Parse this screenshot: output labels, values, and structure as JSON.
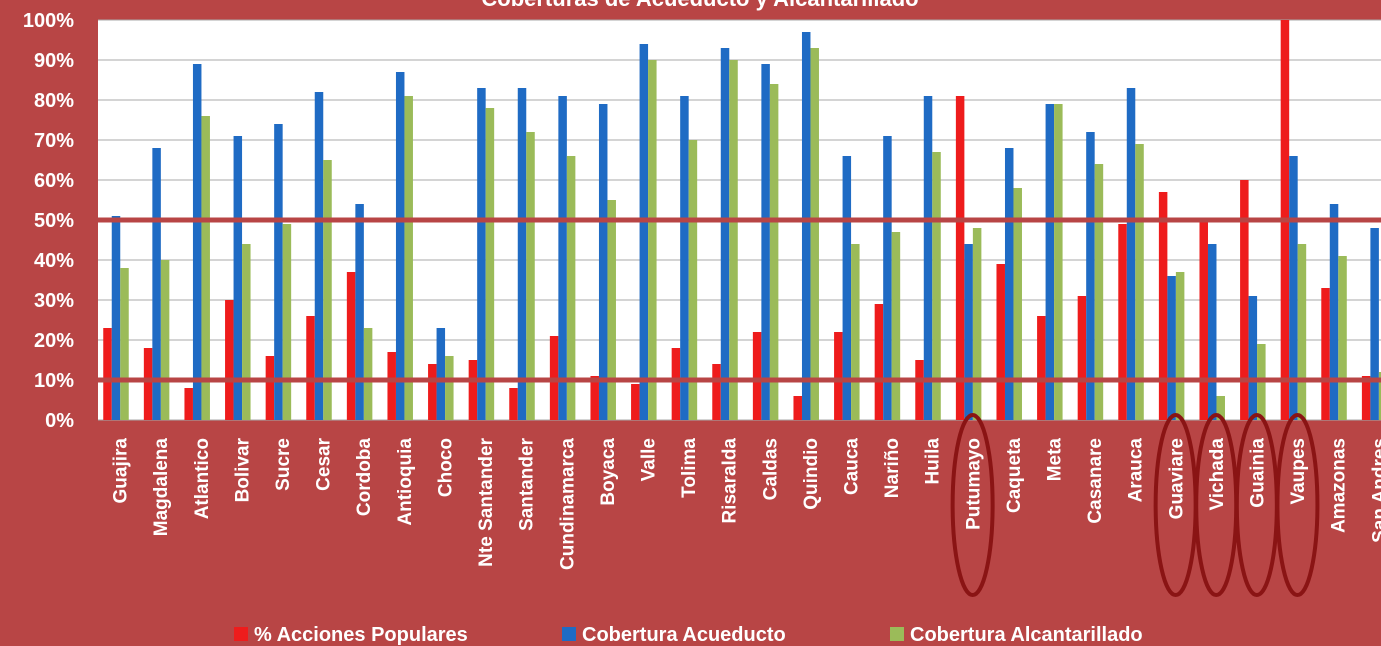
{
  "chart_data": {
    "type": "bar",
    "title": "Coberturas de Acueducto y  Alcantarillado",
    "xlabel": "",
    "ylabel": "",
    "ylim": [
      0,
      100
    ],
    "y_ticks": [
      "0%",
      "10%",
      "20%",
      "30%",
      "40%",
      "50%",
      "60%",
      "70%",
      "80%",
      "90%",
      "100%"
    ],
    "grid": true,
    "legend_position": "bottom",
    "categories": [
      "Guajira",
      "Magdalena",
      "Atlantico",
      "Bolivar",
      "Sucre",
      "Cesar",
      "Cordoba",
      "Antioquia",
      "Choco",
      "Nte Santander",
      "Santander",
      "Cundinamarca",
      "Boyaca",
      "Valle",
      "Tolima",
      "Risaralda",
      "Caldas",
      "Quindio",
      "Cauca",
      "Nariño",
      "Huila",
      "Putumayo",
      "Caqueta",
      "Meta",
      "Casanare",
      "Arauca",
      "Guaviare",
      "Vichada",
      "Guainia",
      "Vaupes",
      "Amazonas",
      "San Andres"
    ],
    "series": [
      {
        "name": "% Acciones Populares",
        "color": "#ee1c1c",
        "values": [
          23,
          18,
          8,
          30,
          16,
          26,
          37,
          17,
          14,
          15,
          8,
          21,
          11,
          9,
          18,
          14,
          22,
          6,
          22,
          29,
          15,
          81,
          39,
          26,
          31,
          49,
          57,
          50,
          60,
          100,
          33,
          11
        ]
      },
      {
        "name": "Cobertura Acueducto",
        "color": "#1f6bc4",
        "values": [
          51,
          68,
          89,
          71,
          74,
          82,
          54,
          87,
          23,
          83,
          83,
          81,
          79,
          94,
          81,
          93,
          89,
          97,
          66,
          71,
          81,
          44,
          68,
          79,
          72,
          83,
          36,
          44,
          31,
          66,
          54,
          48
        ]
      },
      {
        "name": "Cobertura Alcantarillado",
        "color": "#9bbb59",
        "values": [
          38,
          40,
          76,
          44,
          49,
          65,
          23,
          81,
          16,
          78,
          72,
          66,
          55,
          90,
          70,
          90,
          84,
          93,
          44,
          47,
          67,
          48,
          58,
          79,
          64,
          69,
          37,
          6,
          19,
          44,
          41,
          12
        ]
      }
    ],
    "reference_lines": [
      50,
      10
    ],
    "highlighted_categories": [
      "Putumayo",
      "Guaviare",
      "Vichada",
      "Guainia",
      "Vaupes"
    ]
  },
  "colors": {
    "background": "#b84545",
    "plot_background": "#ffffff",
    "reference_line": "#b84545",
    "highlight_ellipse": "#8a1414",
    "text": "#ffffff"
  }
}
